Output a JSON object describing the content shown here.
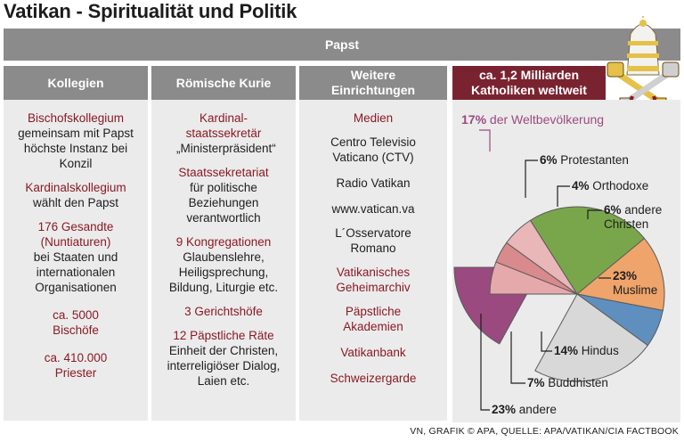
{
  "title": "Vatikan - Spiritualität und Politik",
  "papst": "Papst",
  "columns": {
    "kollegien": {
      "header": "Kollegien",
      "items": [
        {
          "red": "Bischofskollegium",
          "text": "gemeinsam mit Papst höchste Instanz bei Konzil"
        },
        {
          "red": "Kardinalskollegium",
          "text": "wählt den Papst"
        },
        {
          "red": "176 Gesandte (Nuntiaturen)",
          "text": "bei Staaten und internationalen Organisationen"
        },
        {
          "red": "ca. 5000 Bischöfe",
          "text": ""
        },
        {
          "red": "ca. 410.000 Priester",
          "text": ""
        }
      ]
    },
    "kurie": {
      "header": "Römische Kurie",
      "items": [
        {
          "red": "Kardinal-staatssekretär",
          "text": "„Ministerpräsident“"
        },
        {
          "red": "Staatssekretariat",
          "text": "für politische Beziehungen verantwortlich"
        },
        {
          "red": "9 Kongregationen",
          "text": "Glaubenslehre, Heiligsprechung, Bildung, Liturgie etc."
        },
        {
          "red": "3 Gerichtshöfe",
          "text": ""
        },
        {
          "red": "12 Päpstliche Räte",
          "text": "Einheit der Christen, interreligiöser Dialog, Laien etc."
        }
      ]
    },
    "einrichtungen": {
      "header": "Weitere Einrichtungen",
      "items": [
        {
          "red": "Medien",
          "text": ""
        },
        {
          "red": "",
          "text": "Centro Televisio Vaticano (CTV)"
        },
        {
          "red": "",
          "text": "Radio Vatikan"
        },
        {
          "red": "",
          "text": "www.vatican.va"
        },
        {
          "red": "",
          "text": "L´Osservatore Romano"
        },
        {
          "red": "Vatikanisches Geheimarchiv",
          "text": ""
        },
        {
          "red": "Päpstliche Akademien",
          "text": ""
        },
        {
          "red": "Vatikanbank",
          "text": ""
        },
        {
          "red": "Schweizergarde",
          "text": ""
        }
      ]
    },
    "katholiken": {
      "header": "ca. 1,2 Milliarden Katholiken weltweit"
    }
  },
  "pie": {
    "headline_pct": "17%",
    "headline_text": "der Weltbevölkerung",
    "slices": [
      {
        "pct": "17%",
        "label": "Katholiken",
        "value": 17,
        "color": "#9a4a7e"
      },
      {
        "pct": "6%",
        "label": "Protestanten",
        "value": 6,
        "color": "#e6a9ab"
      },
      {
        "pct": "4%",
        "label": "Orthodoxe",
        "value": 4,
        "color": "#d98a8c"
      },
      {
        "pct": "6%",
        "label": "andere Christen",
        "value": 6,
        "color": "#e9b7b8"
      },
      {
        "pct": "23%",
        "label": "Muslime",
        "value": 23,
        "color": "#79a64b"
      },
      {
        "pct": "14%",
        "label": "Hindus",
        "value": 14,
        "color": "#eea46a"
      },
      {
        "pct": "7%",
        "label": "Buddhisten",
        "value": 7,
        "color": "#5f8fbf"
      },
      {
        "pct": "23%",
        "label": "andere",
        "value": 23,
        "color": "#d8d8d8"
      }
    ]
  },
  "footer": "VN, GRAFIK © APA, QUELLE: APA/VATIKAN/CIA FACTBOOK"
}
